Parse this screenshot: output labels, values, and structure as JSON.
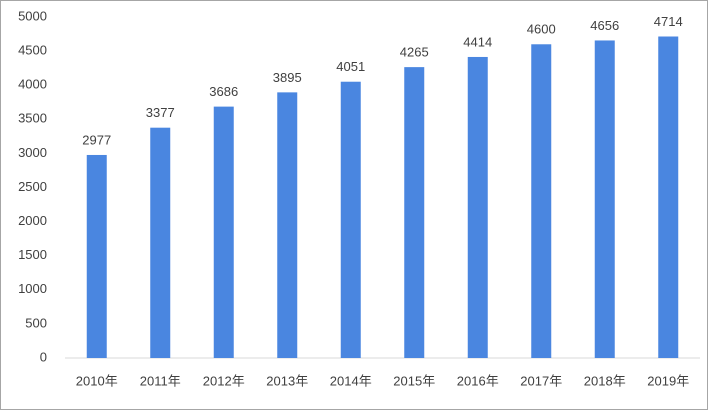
{
  "chart_data": {
    "type": "bar",
    "categories": [
      "2010年",
      "2011年",
      "2012年",
      "2013年",
      "2014年",
      "2015年",
      "2016年",
      "2017年",
      "2018年",
      "2019年"
    ],
    "values": [
      2977,
      3377,
      3686,
      3895,
      4051,
      4265,
      4414,
      4600,
      4656,
      4714
    ],
    "color": "#4a86e0",
    "ylim": [
      0,
      5000
    ],
    "yticks": [
      0,
      500,
      1000,
      1500,
      2000,
      2500,
      3000,
      3500,
      4000,
      4500,
      5000
    ],
    "grid": false,
    "data_labels": true
  }
}
